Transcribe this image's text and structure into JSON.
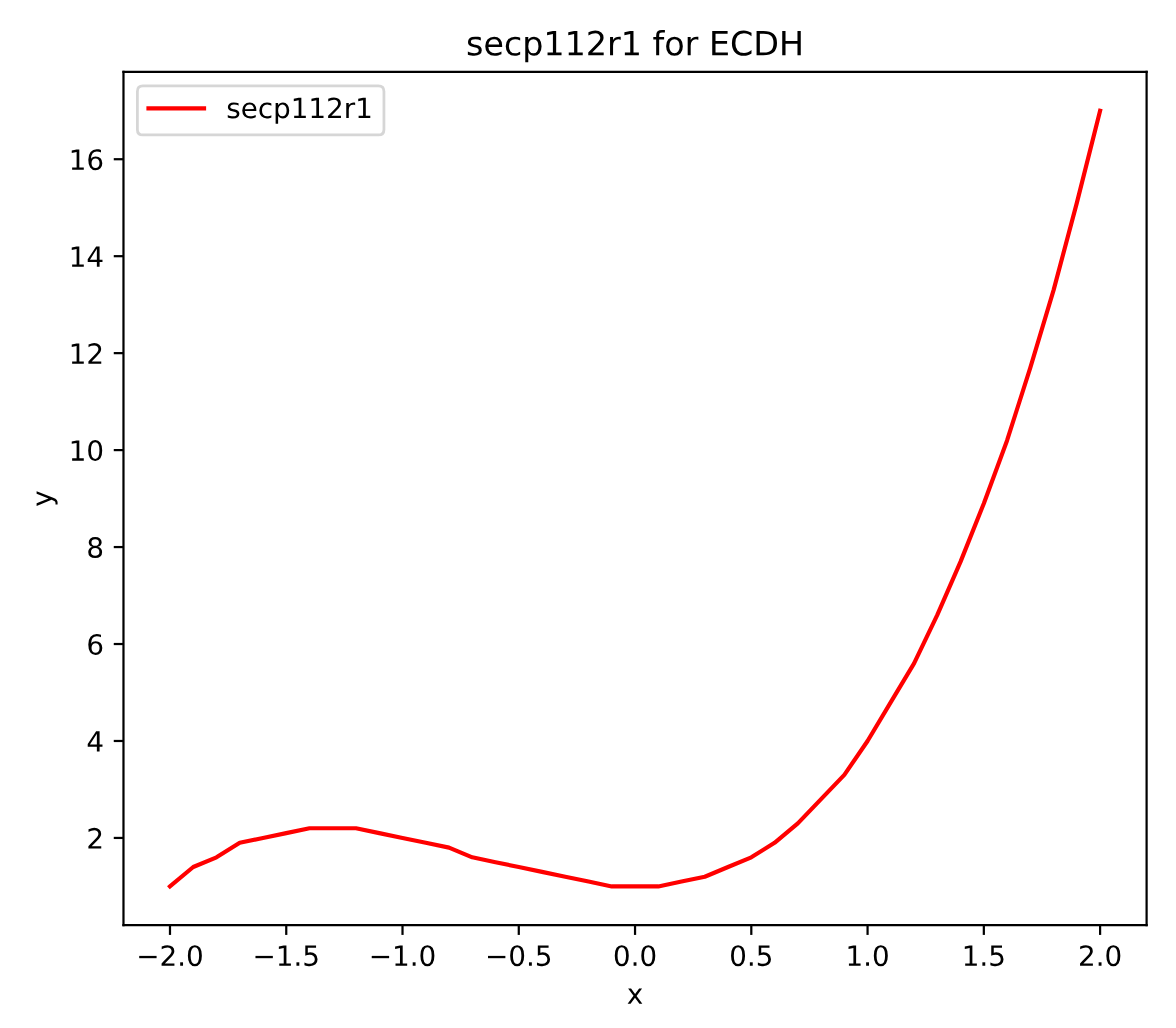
{
  "chart_data": {
    "type": "line",
    "title": "secp112r1 for ECDH",
    "xlabel": "x",
    "ylabel": "y",
    "x": [
      -2.0,
      -1.9,
      -1.8,
      -1.7,
      -1.6,
      -1.5,
      -1.4,
      -1.3,
      -1.2,
      -1.1,
      -1.0,
      -0.9,
      -0.8,
      -0.7,
      -0.6,
      -0.5,
      -0.4,
      -0.3,
      -0.2,
      -0.1,
      0.0,
      0.1,
      0.2,
      0.3,
      0.4,
      0.5,
      0.6,
      0.7,
      0.8,
      0.9,
      1.0,
      1.1,
      1.2,
      1.3,
      1.4,
      1.5,
      1.6,
      1.7,
      1.8,
      1.9,
      2.0
    ],
    "series": [
      {
        "name": "secp112r1",
        "color": "#ff0000",
        "values": [
          1.0,
          1.4,
          1.6,
          1.9,
          2.0,
          2.1,
          2.2,
          2.2,
          2.2,
          2.1,
          2.0,
          1.9,
          1.8,
          1.6,
          1.5,
          1.4,
          1.3,
          1.2,
          1.1,
          1.0,
          1.0,
          1.0,
          1.1,
          1.2,
          1.4,
          1.6,
          1.9,
          2.3,
          2.8,
          3.3,
          4.0,
          4.8,
          5.6,
          6.6,
          7.7,
          8.9,
          10.2,
          11.7,
          13.3,
          15.1,
          17.0
        ]
      }
    ],
    "xlim": [
      -2.2,
      2.2
    ],
    "ylim": [
      0.2,
      17.8
    ],
    "xticks": [
      {
        "value": -2.0,
        "label": "−2.0"
      },
      {
        "value": -1.5,
        "label": "−1.5"
      },
      {
        "value": -1.0,
        "label": "−1.0"
      },
      {
        "value": -0.5,
        "label": "−0.5"
      },
      {
        "value": 0.0,
        "label": "0.0"
      },
      {
        "value": 0.5,
        "label": "0.5"
      },
      {
        "value": 1.0,
        "label": "1.0"
      },
      {
        "value": 1.5,
        "label": "1.5"
      },
      {
        "value": 2.0,
        "label": "2.0"
      }
    ],
    "yticks": [
      2,
      4,
      6,
      8,
      10,
      12,
      14,
      16
    ],
    "legend": "upper left",
    "grid": false,
    "marker": "none",
    "line_style": "solid"
  }
}
